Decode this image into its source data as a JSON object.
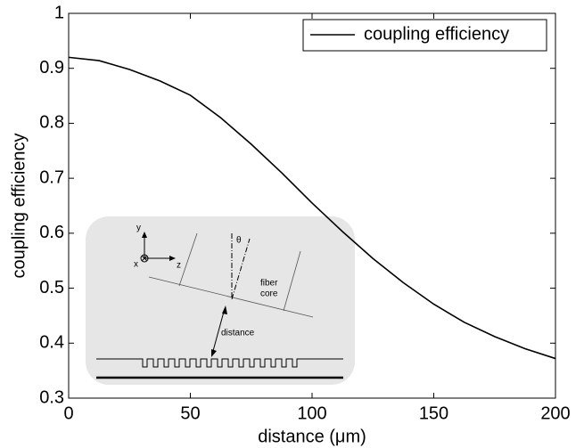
{
  "chart_data": {
    "type": "line",
    "x_label": "distance (μm)",
    "y_label": "coupling efficiency",
    "series": [
      {
        "name": "coupling efficiency",
        "color": "#000000",
        "x": [
          0,
          12.5,
          25,
          37.5,
          50,
          62.5,
          75,
          87.5,
          100,
          112.5,
          125,
          137.5,
          150,
          162.5,
          175,
          187.5,
          200
        ],
        "values": [
          0.92,
          0.914,
          0.898,
          0.877,
          0.851,
          0.81,
          0.762,
          0.71,
          0.655,
          0.603,
          0.554,
          0.51,
          0.471,
          0.438,
          0.412,
          0.39,
          0.372
        ]
      }
    ],
    "xlim": [
      0,
      200
    ],
    "xticks": [
      0,
      50,
      100,
      150,
      200
    ],
    "ylim": [
      0.3,
      1
    ],
    "yticks": [
      0.3,
      0.4,
      0.5,
      0.6,
      0.7,
      0.8,
      0.9,
      1
    ],
    "legend": "upper right",
    "grid": false
  },
  "inset": {
    "labels": [
      "y",
      "x",
      "z",
      "θ",
      "fiber",
      "core",
      "distance"
    ]
  }
}
